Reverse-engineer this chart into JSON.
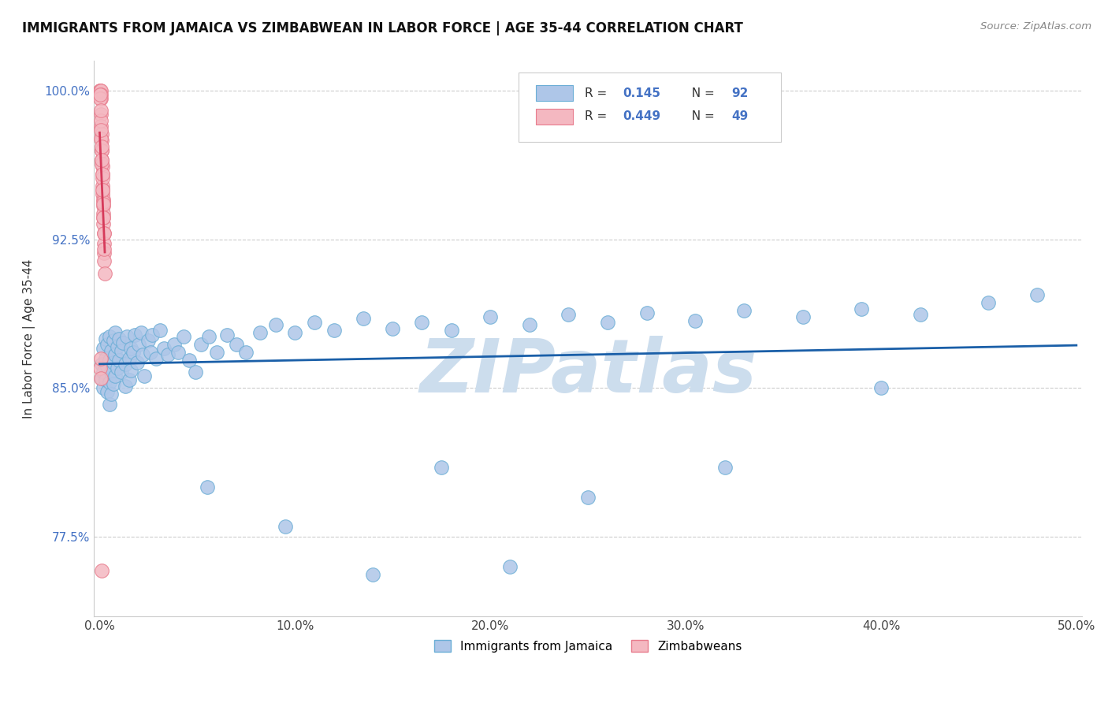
{
  "title": "IMMIGRANTS FROM JAMAICA VS ZIMBABWEAN IN LABOR FORCE | AGE 35-44 CORRELATION CHART",
  "source": "Source: ZipAtlas.com",
  "ylabel": "In Labor Force | Age 35-44",
  "xlim": [
    -0.003,
    0.503
  ],
  "ylim": [
    0.735,
    1.015
  ],
  "xticks": [
    0.0,
    0.1,
    0.2,
    0.3,
    0.4,
    0.5
  ],
  "xticklabels": [
    "0.0%",
    "10.0%",
    "20.0%",
    "30.0%",
    "40.0%",
    "50.0%"
  ],
  "yticks": [
    0.775,
    0.85,
    0.925,
    1.0
  ],
  "yticklabels": [
    "77.5%",
    "85.0%",
    "92.5%",
    "100.0%"
  ],
  "jamaica_color": "#aec6e8",
  "zimbabwe_color": "#f4b8c1",
  "jamaica_edge": "#6baed6",
  "zimbabwe_edge": "#e87c8d",
  "trend_jamaica": "#1a5fa8",
  "trend_zimbabwe": "#d63a5a",
  "watermark": "ZIPatlas",
  "watermark_color": "#ccdded",
  "R_jamaica": 0.145,
  "N_jamaica": 92,
  "R_zimbabwe": 0.449,
  "N_zimbabwe": 49,
  "legend_jamaica": "Immigrants from Jamaica",
  "legend_zimbabwe": "Zimbabweans",
  "jamaica_x": [
    0.001,
    0.001,
    0.002,
    0.002,
    0.002,
    0.003,
    0.003,
    0.003,
    0.004,
    0.004,
    0.004,
    0.005,
    0.005,
    0.005,
    0.005,
    0.006,
    0.006,
    0.006,
    0.007,
    0.007,
    0.007,
    0.008,
    0.008,
    0.008,
    0.009,
    0.009,
    0.01,
    0.01,
    0.011,
    0.011,
    0.012,
    0.013,
    0.013,
    0.014,
    0.015,
    0.015,
    0.016,
    0.016,
    0.017,
    0.018,
    0.019,
    0.02,
    0.021,
    0.022,
    0.023,
    0.025,
    0.026,
    0.027,
    0.029,
    0.031,
    0.033,
    0.035,
    0.038,
    0.04,
    0.043,
    0.046,
    0.049,
    0.052,
    0.056,
    0.06,
    0.065,
    0.07,
    0.075,
    0.082,
    0.09,
    0.1,
    0.11,
    0.12,
    0.135,
    0.15,
    0.165,
    0.18,
    0.2,
    0.22,
    0.24,
    0.26,
    0.28,
    0.305,
    0.33,
    0.36,
    0.39,
    0.42,
    0.455,
    0.48,
    0.055,
    0.095,
    0.14,
    0.175,
    0.21,
    0.25,
    0.32,
    0.4
  ],
  "jamaica_y": [
    0.862,
    0.855,
    0.87,
    0.858,
    0.85,
    0.875,
    0.865,
    0.854,
    0.872,
    0.861,
    0.848,
    0.876,
    0.864,
    0.853,
    0.842,
    0.869,
    0.858,
    0.847,
    0.874,
    0.863,
    0.852,
    0.878,
    0.867,
    0.856,
    0.871,
    0.86,
    0.875,
    0.864,
    0.869,
    0.858,
    0.873,
    0.862,
    0.851,
    0.876,
    0.865,
    0.854,
    0.87,
    0.859,
    0.868,
    0.877,
    0.863,
    0.872,
    0.878,
    0.867,
    0.856,
    0.874,
    0.868,
    0.877,
    0.865,
    0.879,
    0.87,
    0.867,
    0.872,
    0.868,
    0.876,
    0.864,
    0.858,
    0.872,
    0.876,
    0.868,
    0.877,
    0.872,
    0.868,
    0.878,
    0.882,
    0.878,
    0.883,
    0.879,
    0.885,
    0.88,
    0.883,
    0.879,
    0.886,
    0.882,
    0.887,
    0.883,
    0.888,
    0.884,
    0.889,
    0.886,
    0.89,
    0.887,
    0.893,
    0.897,
    0.8,
    0.78,
    0.756,
    0.81,
    0.76,
    0.795,
    0.81,
    0.85
  ],
  "zimbabwe_x": [
    0.0003,
    0.0003,
    0.0004,
    0.0005,
    0.0005,
    0.0006,
    0.0007,
    0.0008,
    0.0009,
    0.001,
    0.0011,
    0.0012,
    0.0013,
    0.0014,
    0.0015,
    0.0016,
    0.0017,
    0.0018,
    0.0019,
    0.002,
    0.0021,
    0.0022,
    0.0023,
    0.0024,
    0.0025,
    0.0004,
    0.0006,
    0.0008,
    0.001,
    0.0012,
    0.0014,
    0.0016,
    0.0018,
    0.002,
    0.0003,
    0.0005,
    0.0007,
    0.0009,
    0.0011,
    0.0013,
    0.0015,
    0.0017,
    0.0019,
    0.0021,
    0.0023,
    0.0003,
    0.0005,
    0.0007,
    0.0009
  ],
  "zimbabwe_y": [
    1.0,
    1.0,
    1.0,
    1.0,
    0.998,
    0.996,
    0.988,
    0.982,
    0.978,
    0.975,
    0.97,
    0.965,
    0.962,
    0.958,
    0.952,
    0.948,
    0.945,
    0.942,
    0.938,
    0.933,
    0.928,
    0.923,
    0.918,
    0.914,
    0.908,
    0.996,
    0.985,
    0.976,
    0.97,
    0.963,
    0.956,
    0.95,
    0.944,
    0.936,
    0.998,
    0.99,
    0.98,
    0.972,
    0.965,
    0.958,
    0.95,
    0.943,
    0.936,
    0.928,
    0.92,
    0.86,
    0.855,
    0.865,
    0.758
  ]
}
